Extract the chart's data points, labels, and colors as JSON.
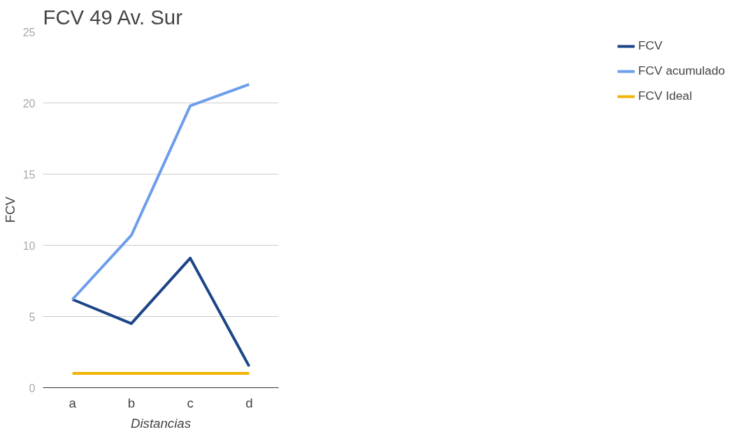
{
  "chart_data": {
    "type": "line",
    "title": "FCV 49 Av. Sur",
    "xlabel": "Distancias",
    "ylabel": "FCV",
    "categories": [
      "a",
      "b",
      "c",
      "d"
    ],
    "series": [
      {
        "name": "FCV",
        "color": "#1c4587",
        "values": [
          6.2,
          4.5,
          9.1,
          1.5
        ]
      },
      {
        "name": "FCV acumulado",
        "color": "#6d9eeb",
        "values": [
          6.2,
          10.7,
          19.8,
          21.3
        ]
      },
      {
        "name": "FCV Ideal",
        "color": "#f1b300",
        "values": [
          1,
          1,
          1,
          1
        ]
      }
    ],
    "ylim": [
      0,
      25
    ],
    "yticks": [
      0,
      5,
      10,
      15,
      20,
      25
    ],
    "grid": "y",
    "legend": "right",
    "marker": "none",
    "line_style": "solid"
  }
}
